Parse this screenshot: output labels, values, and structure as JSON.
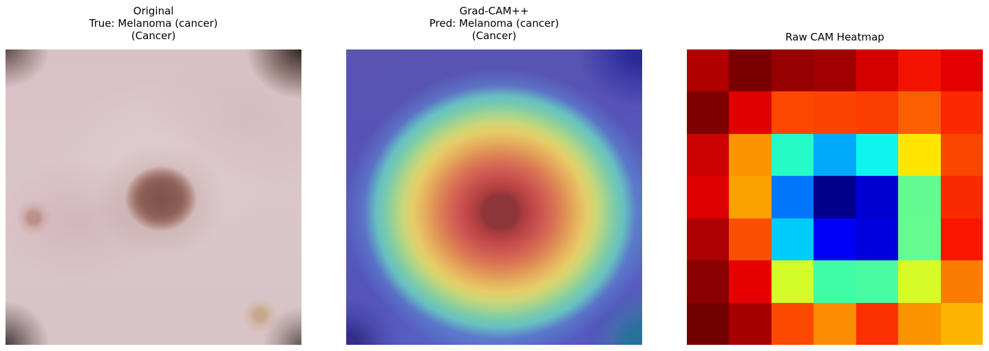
{
  "figure": {
    "background_color": "#ffffff"
  },
  "panels": [
    {
      "name": "original",
      "title_lines": [
        "Original",
        "True: Melanoma (cancer)",
        "(Cancer)"
      ],
      "content": "dermoscopy photo of a pink skin area with a central brown melanoma lesion and dark vignetted corners",
      "key_colors": {
        "skin": "#d9c3c7",
        "lesion_core": "#855a50",
        "lesion_halo": "#a87f74",
        "corner_vignette": "#3a2e2a"
      }
    },
    {
      "name": "gradcam",
      "title_lines": [
        "Grad-CAM++",
        "Pred: Melanoma (cancer)",
        "(Cancer)"
      ],
      "content": "Grad-CAM++ activation overlay: central red-hot region over the lesion fading through yellow, green and cyan rings into an indigo-blue background",
      "key_colors": {
        "background": "#5551b8",
        "hotspot_center": "#8e3538",
        "ring_orange": "#e08f56",
        "ring_yellow": "#e6cc68",
        "ring_cyan": "#67c0c2",
        "corner_navy": "#2a2896",
        "corner_teal": "#237396"
      }
    },
    {
      "name": "raw-cam",
      "title_lines": [
        "Raw CAM Heatmap"
      ],
      "content": "7x7 raw class activation map rendered with the jet colormap, axes off"
    }
  ],
  "chart_data": {
    "type": "heatmap",
    "title": "Raw CAM Heatmap",
    "rows": 7,
    "cols": 7,
    "colormap": "jet",
    "axes": "off",
    "legend": "none",
    "cell_colors": [
      [
        "#b00000",
        "#7a0000",
        "#970000",
        "#a10000",
        "#d40000",
        "#f31300",
        "#e40000"
      ],
      [
        "#800000",
        "#e00000",
        "#fb4700",
        "#fb4300",
        "#fa3c00",
        "#fb6000",
        "#fb2800"
      ],
      [
        "#cb0000",
        "#fc9300",
        "#25fbc7",
        "#00a9fc",
        "#10f4ee",
        "#ffe600",
        "#f94700"
      ],
      [
        "#dd0000",
        "#fca100",
        "#0377fc",
        "#00008c",
        "#0000d2",
        "#61fb92",
        "#f92900"
      ],
      [
        "#ad0000",
        "#fb4f00",
        "#00ccfc",
        "#0000f8",
        "#0000dc",
        "#66fb90",
        "#fb1500"
      ],
      [
        "#8b0000",
        "#e70000",
        "#d3fb28",
        "#3ffca6",
        "#49fca2",
        "#d7fb26",
        "#fb7c00"
      ],
      [
        "#710000",
        "#a60000",
        "#fb4900",
        "#fb8b00",
        "#fb3000",
        "#fb9300",
        "#fbb500"
      ]
    ],
    "cell_values_normalized_est": [
      [
        0.95,
        1.0,
        0.98,
        0.97,
        0.92,
        0.88,
        0.9
      ],
      [
        1.0,
        0.91,
        0.81,
        0.81,
        0.82,
        0.78,
        0.84
      ],
      [
        0.93,
        0.73,
        0.43,
        0.29,
        0.39,
        0.65,
        0.81
      ],
      [
        0.91,
        0.72,
        0.24,
        0.01,
        0.08,
        0.48,
        0.84
      ],
      [
        0.96,
        0.8,
        0.33,
        0.12,
        0.09,
        0.48,
        0.85
      ],
      [
        0.99,
        0.9,
        0.58,
        0.46,
        0.47,
        0.59,
        0.75
      ],
      [
        1.0,
        0.96,
        0.8,
        0.74,
        0.83,
        0.73,
        0.7
      ]
    ]
  }
}
